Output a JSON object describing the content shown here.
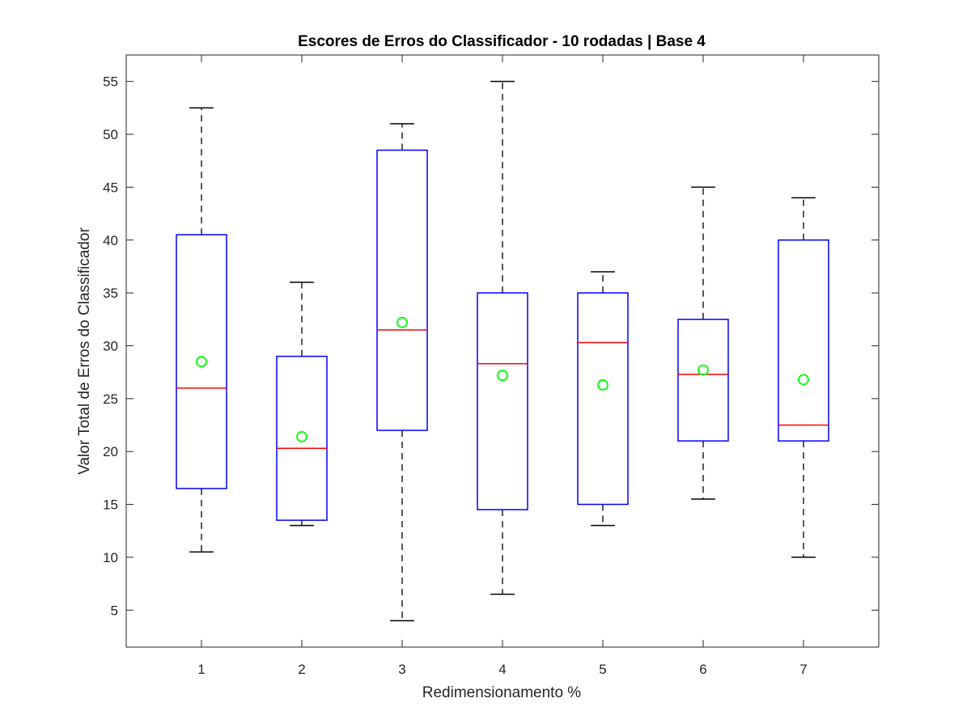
{
  "chart_data": {
    "type": "boxplot",
    "title": "Escores de Erros do Classificador - 10 rodadas | Base 4",
    "xlabel": "Redimensionamento %",
    "ylabel": "Valor Total de Erros do Classificador",
    "categories": [
      "1",
      "2",
      "3",
      "4",
      "5",
      "6",
      "7"
    ],
    "ylim": [
      1.5,
      57.5
    ],
    "yticks": [
      5,
      10,
      15,
      20,
      25,
      30,
      35,
      40,
      45,
      50,
      55
    ],
    "grid": false,
    "boxes": [
      {
        "category": "1",
        "whisker_low": 10.5,
        "q1": 16.5,
        "median": 26.0,
        "q3": 40.5,
        "whisker_high": 52.5,
        "mean": 28.5
      },
      {
        "category": "2",
        "whisker_low": 13.0,
        "q1": 13.5,
        "median": 20.3,
        "q3": 29.0,
        "whisker_high": 36.0,
        "mean": 21.4
      },
      {
        "category": "3",
        "whisker_low": 4.0,
        "q1": 22.0,
        "median": 31.5,
        "q3": 48.5,
        "whisker_high": 51.0,
        "mean": 32.2
      },
      {
        "category": "4",
        "whisker_low": 6.5,
        "q1": 14.5,
        "median": 28.3,
        "q3": 35.0,
        "whisker_high": 55.0,
        "mean": 27.2
      },
      {
        "category": "5",
        "whisker_low": 13.0,
        "q1": 15.0,
        "median": 30.3,
        "q3": 35.0,
        "whisker_high": 37.0,
        "mean": 26.3
      },
      {
        "category": "6",
        "whisker_low": 15.5,
        "q1": 21.0,
        "median": 27.3,
        "q3": 32.5,
        "whisker_high": 45.0,
        "mean": 27.7
      },
      {
        "category": "7",
        "whisker_low": 10.0,
        "q1": 21.0,
        "median": 22.5,
        "q3": 40.0,
        "whisker_high": 44.0,
        "mean": 26.8
      }
    ],
    "colors": {
      "box": "#0000ff",
      "median": "#ff0000",
      "whisker": "#000000",
      "mean_marker": "#00ff00",
      "axes": "#262626"
    }
  }
}
